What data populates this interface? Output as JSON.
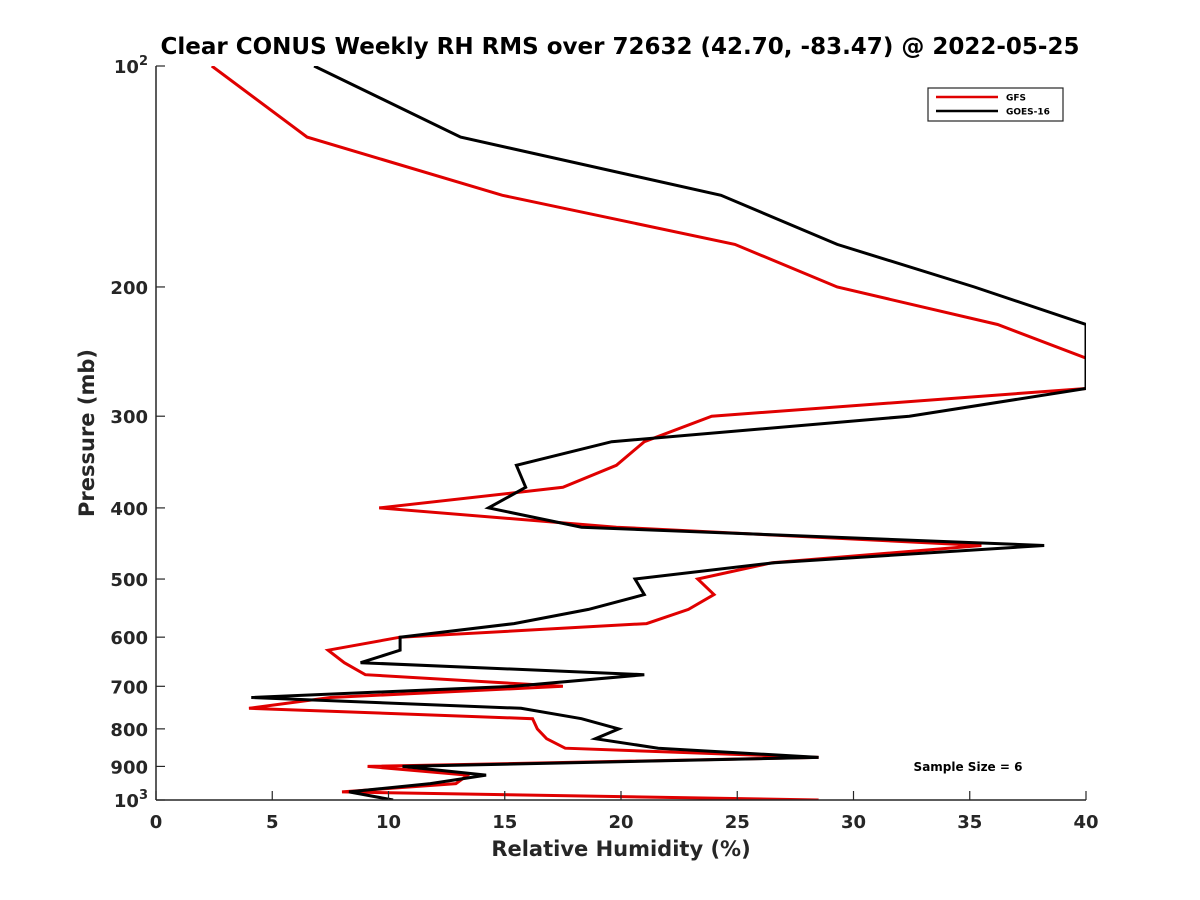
{
  "chart_data": {
    "type": "line",
    "title": "Clear CONUS Weekly RH RMS over 72632 (42.70, -83.47) @ 2022-05-25",
    "xlabel": "Relative Humidity (%)",
    "ylabel": "Pressure (mb)",
    "xlim": [
      0,
      40
    ],
    "ylim": [
      100,
      1000
    ],
    "yscale": "log",
    "y_reversed": true,
    "grid": false,
    "legend_position": "top-right",
    "x_ticks": [
      "0",
      "5",
      "10",
      "15",
      "20",
      "25",
      "30",
      "35",
      "40"
    ],
    "y_ticks": [
      {
        "value": 100,
        "base": "10",
        "exp": "2"
      },
      {
        "value": 200,
        "label": "200"
      },
      {
        "value": 300,
        "label": "300"
      },
      {
        "value": 400,
        "label": "400"
      },
      {
        "value": 500,
        "label": "500"
      },
      {
        "value": 600,
        "label": "600"
      },
      {
        "value": 700,
        "label": "700"
      },
      {
        "value": 800,
        "label": "800"
      },
      {
        "value": 900,
        "label": "900"
      },
      {
        "value": 1000,
        "base": "10",
        "exp": "3"
      }
    ],
    "annotation": "Sample Size = 6",
    "series": [
      {
        "name": "GFS",
        "color": "#e00000",
        "points": [
          [
            2.4,
            100
          ],
          [
            6.5,
            125
          ],
          [
            14.9,
            150
          ],
          [
            24.9,
            175
          ],
          [
            29.3,
            200
          ],
          [
            36.2,
            225
          ],
          [
            40.0,
            250
          ],
          [
            40.0,
            275
          ],
          [
            23.9,
            300
          ],
          [
            21.0,
            325
          ],
          [
            19.8,
            350
          ],
          [
            17.5,
            375
          ],
          [
            9.6,
            400
          ],
          [
            19.8,
            425
          ],
          [
            35.5,
            450
          ],
          [
            26.5,
            475
          ],
          [
            23.3,
            500
          ],
          [
            24.0,
            525
          ],
          [
            22.9,
            550
          ],
          [
            21.1,
            575
          ],
          [
            10.5,
            600
          ],
          [
            7.4,
            625
          ],
          [
            8.1,
            650
          ],
          [
            9.0,
            675
          ],
          [
            17.5,
            700
          ],
          [
            7.5,
            725
          ],
          [
            4.0,
            750
          ],
          [
            16.2,
            775
          ],
          [
            16.4,
            800
          ],
          [
            16.8,
            825
          ],
          [
            17.6,
            850
          ],
          [
            28.5,
            875
          ],
          [
            9.1,
            900
          ],
          [
            13.4,
            925
          ],
          [
            12.9,
            950
          ],
          [
            8.0,
            975
          ],
          [
            28.5,
            1000
          ]
        ]
      },
      {
        "name": "GOES-16",
        "color": "#000000",
        "points": [
          [
            6.8,
            100
          ],
          [
            13.1,
            125
          ],
          [
            24.3,
            150
          ],
          [
            29.3,
            175
          ],
          [
            35.2,
            200
          ],
          [
            40.0,
            225
          ],
          [
            40.0,
            250
          ],
          [
            40.0,
            275
          ],
          [
            32.4,
            300
          ],
          [
            19.6,
            325
          ],
          [
            15.5,
            350
          ],
          [
            15.9,
            375
          ],
          [
            14.3,
            400
          ],
          [
            18.3,
            425
          ],
          [
            38.2,
            450
          ],
          [
            26.6,
            475
          ],
          [
            20.6,
            500
          ],
          [
            21.0,
            525
          ],
          [
            18.6,
            550
          ],
          [
            15.4,
            575
          ],
          [
            10.5,
            600
          ],
          [
            10.5,
            625
          ],
          [
            8.8,
            650
          ],
          [
            21.0,
            675
          ],
          [
            15.4,
            700
          ],
          [
            4.1,
            725
          ],
          [
            15.7,
            750
          ],
          [
            18.3,
            775
          ],
          [
            19.9,
            800
          ],
          [
            18.9,
            825
          ],
          [
            21.6,
            850
          ],
          [
            28.5,
            875
          ],
          [
            10.6,
            900
          ],
          [
            14.2,
            925
          ],
          [
            11.8,
            950
          ],
          [
            8.3,
            975
          ],
          [
            10.2,
            1000
          ]
        ]
      }
    ]
  }
}
